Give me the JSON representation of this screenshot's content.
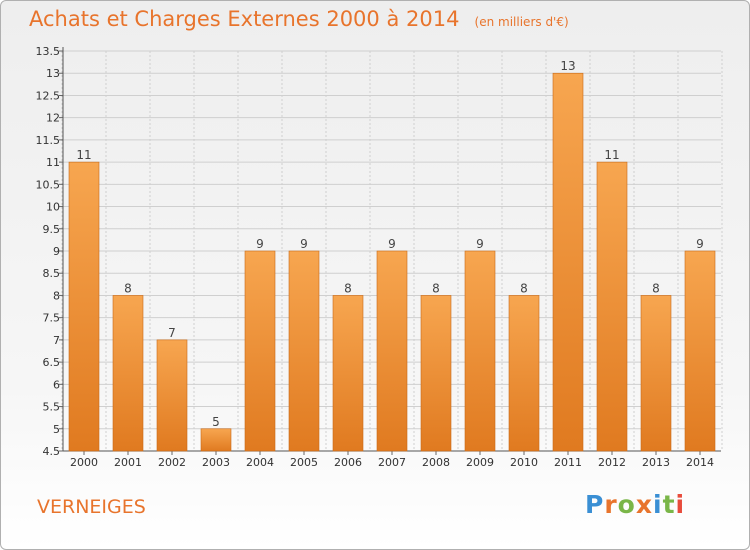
{
  "header": {
    "title": "Achats et Charges Externes 2000 à 2014",
    "unit": "(en milliers d'€)"
  },
  "footer": {
    "commune": "VERNEIGES",
    "brand": "Proxiti"
  },
  "colors": {
    "bar_light": "#f7a650",
    "bar_dark": "#e07a20",
    "text_orange": "#e8742c",
    "grid": "#cfcfcf"
  },
  "chart_data": {
    "type": "bar",
    "title": "Achats et Charges Externes 2000 à 2014",
    "subtitle": "(en milliers d'€)",
    "xlabel": "",
    "ylabel": "",
    "categories": [
      "2000",
      "2001",
      "2002",
      "2003",
      "2004",
      "2005",
      "2006",
      "2007",
      "2008",
      "2009",
      "2010",
      "2011",
      "2012",
      "2013",
      "2014"
    ],
    "values": [
      11,
      8,
      7,
      5,
      9,
      9,
      8,
      9,
      8,
      9,
      8,
      13,
      11,
      8,
      9
    ],
    "ylim": [
      4.5,
      13.5
    ],
    "yticks": [
      "4.5",
      "5",
      "5.5",
      "6",
      "6.5",
      "7",
      "7.5",
      "8",
      "8.5",
      "9",
      "9.5",
      "10",
      "10.5",
      "11",
      "11.5",
      "12",
      "12.5",
      "13",
      "13.5"
    ],
    "grid": true,
    "legend": "none"
  }
}
